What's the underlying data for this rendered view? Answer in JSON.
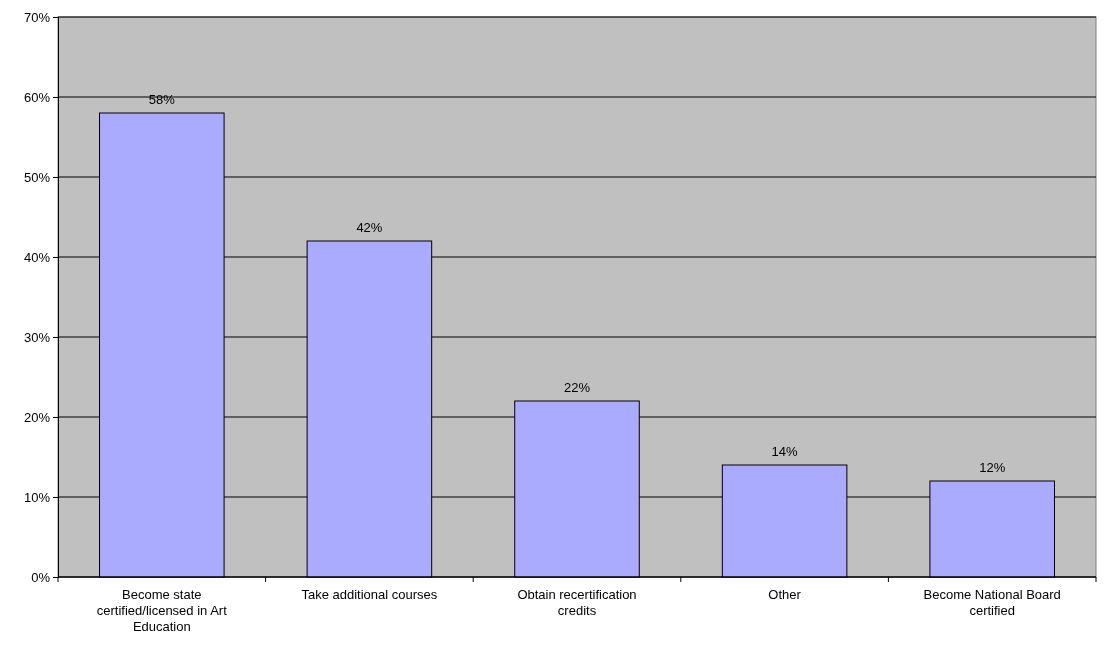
{
  "chart_data": {
    "type": "bar",
    "categories": [
      "Become state certified/licensed in Art Education",
      "Take additional courses",
      "Obtain recertification credits",
      "Other",
      "Become National Board certified"
    ],
    "values": [
      58,
      42,
      22,
      14,
      12
    ],
    "value_labels": [
      "58%",
      "42%",
      "22%",
      "14%",
      "12%"
    ],
    "color": "#aaaaff",
    "ylim": [
      0,
      70
    ],
    "yticks": [
      {
        "value": 0,
        "label": "0%"
      },
      {
        "value": 10,
        "label": "10%"
      },
      {
        "value": 20,
        "label": "20%"
      },
      {
        "value": 30,
        "label": "30%"
      },
      {
        "value": 40,
        "label": "40%"
      },
      {
        "value": 50,
        "label": "50%"
      },
      {
        "value": 60,
        "label": "60%"
      },
      {
        "value": 70,
        "label": "70%"
      }
    ],
    "grid": "y"
  }
}
